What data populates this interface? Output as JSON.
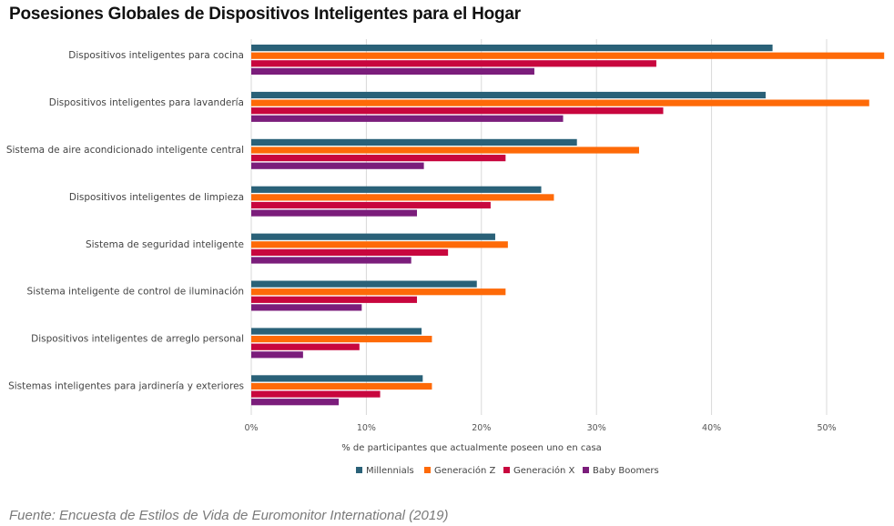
{
  "title": "Posesiones Globales de Dispositivos Inteligentes para el Hogar",
  "source": "Fuente: Encuesta de Estilos de Vida de Euromonitor International (2019)",
  "chart_data": {
    "type": "bar",
    "orientation": "horizontal",
    "title": "Posesiones Globales de Dispositivos Inteligentes para el Hogar",
    "xlabel": "% de participantes que actualmente poseen uno en casa",
    "ylabel": "",
    "xlim": [
      0,
      55
    ],
    "x_ticks": [
      0,
      10,
      20,
      30,
      40,
      50
    ],
    "x_tick_labels": [
      "0%",
      "10%",
      "20%",
      "30%",
      "40%",
      "50%"
    ],
    "grid": true,
    "legend_position": "bottom",
    "categories": [
      "Dispositivos inteligentes para cocina",
      "Dispositivos inteligentes para lavandería",
      "Sistema de aire acondicionado inteligente central",
      "Dispositivos inteligentes de limpieza",
      "Sistema de seguridad inteligente",
      "Sistema inteligente de control de iluminación",
      "Dispositivos inteligentes de arreglo personal",
      "Sistemas inteligentes para jardinería y exteriores"
    ],
    "series": [
      {
        "name": "Millennials",
        "color": "#2a6178",
        "values": [
          45.3,
          44.7,
          28.3,
          25.2,
          21.2,
          19.6,
          14.8,
          14.9
        ]
      },
      {
        "name": "Generación Z",
        "color": "#fe6a08",
        "values": [
          55.0,
          53.7,
          33.7,
          26.3,
          22.3,
          22.1,
          15.7,
          15.7
        ]
      },
      {
        "name": "Generación X",
        "color": "#c8063e",
        "values": [
          35.2,
          35.8,
          22.1,
          20.8,
          17.1,
          14.4,
          9.4,
          11.2
        ]
      },
      {
        "name": "Baby Boomers",
        "color": "#7b1d7b",
        "values": [
          24.6,
          27.1,
          15.0,
          14.4,
          13.9,
          9.6,
          4.5,
          7.6
        ]
      }
    ]
  }
}
